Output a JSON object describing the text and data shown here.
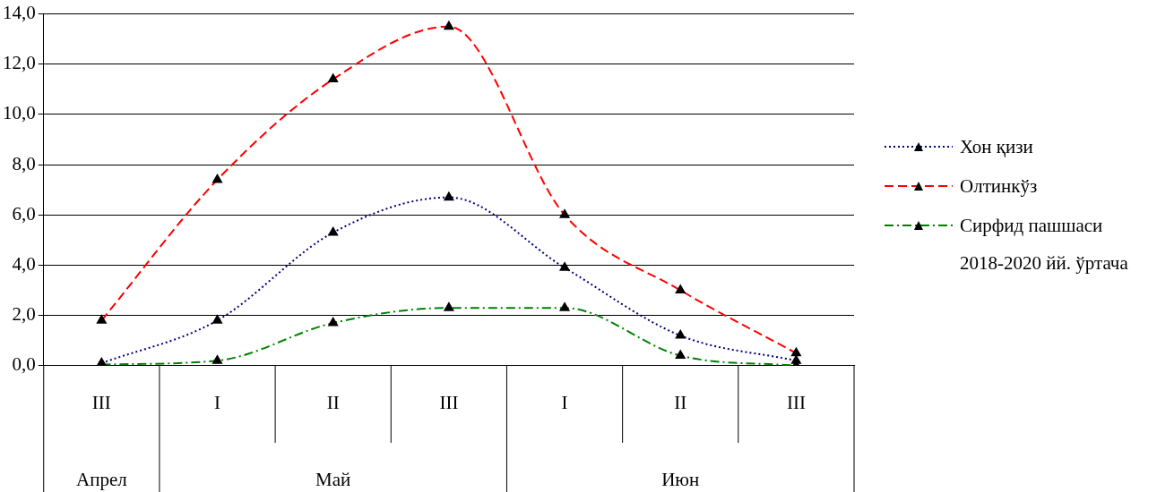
{
  "chart_data": {
    "type": "line",
    "categories": [
      "III",
      "I",
      "II",
      "III",
      "I",
      "II",
      "III"
    ],
    "series": [
      {
        "name": "Хон қизи",
        "color": "#000080",
        "line_style": "dotted",
        "values": [
          0.1,
          1.8,
          5.3,
          6.7,
          3.9,
          1.2,
          0.2
        ]
      },
      {
        "name": "Олтинкўз",
        "color": "#ff0000",
        "line_style": "dashed",
        "values": [
          1.8,
          7.4,
          11.4,
          13.5,
          6.0,
          3.0,
          0.5
        ]
      },
      {
        "name": "Сирфид пашшаси",
        "color": "#008000",
        "line_style": "dashdot",
        "values": [
          0.05,
          0.2,
          1.7,
          2.3,
          2.3,
          0.4,
          0.0
        ]
      }
    ],
    "ylim": [
      0,
      14
    ],
    "yticks": [
      {
        "value": 0,
        "label": "0,0"
      },
      {
        "value": 2,
        "label": "2,0"
      },
      {
        "value": 4,
        "label": "4,0"
      },
      {
        "value": 6,
        "label": "6,0"
      },
      {
        "value": 8,
        "label": "8,0"
      },
      {
        "value": 10,
        "label": "10,0"
      },
      {
        "value": 12,
        "label": "12,0"
      },
      {
        "value": 14,
        "label": "14,0"
      }
    ],
    "grid": "y",
    "legend": "right",
    "marker": "triangle",
    "annotations": [
      "2018-2020 йй. ўртача",
      "Апрел",
      "Май",
      "Июн"
    ]
  }
}
